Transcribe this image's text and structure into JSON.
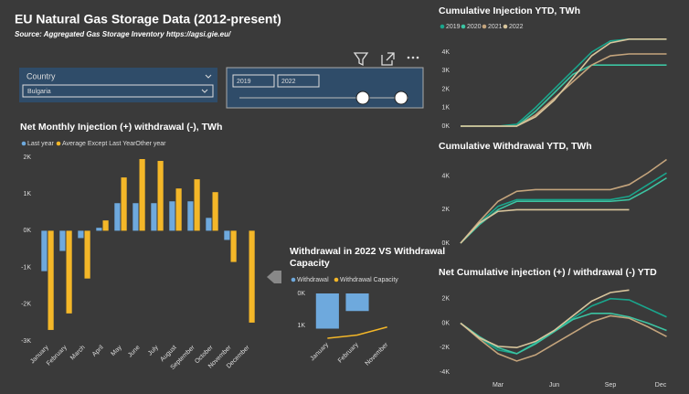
{
  "header": {
    "title": "EU Natural Gas Storage Data (2012-present)",
    "source": "Source: Aggregated Gas Storage Inventory https://agsi.gie.eu/"
  },
  "slicer": {
    "label": "Country",
    "selected": "Bulgaria",
    "year_from": "2019",
    "year_to": "2022"
  },
  "chart_data": [
    {
      "type": "bar",
      "title": "Net Monthly Injection (+) withdrawal (-), TWh",
      "categories": [
        "January",
        "February",
        "March",
        "April",
        "May",
        "June",
        "July",
        "August",
        "September",
        "October",
        "November",
        "December"
      ],
      "series": [
        {
          "name": "Last year",
          "color": "#6ea9dd",
          "values": [
            -1100,
            -550,
            -200,
            80,
            750,
            750,
            750,
            800,
            800,
            350,
            -250,
            0
          ]
        },
        {
          "name": "Average Except Last YearOther year",
          "color": "#f4b728",
          "values": [
            -2700,
            -2250,
            -1300,
            280,
            1450,
            1950,
            1900,
            1150,
            1400,
            1050,
            -850,
            -2500
          ]
        }
      ],
      "ylim": [
        -3000,
        2000
      ],
      "yticks": [
        {
          "value": -3000,
          "label": "-3K"
        },
        {
          "value": -2000,
          "label": "-2K"
        },
        {
          "value": -1000,
          "label": "-1K"
        },
        {
          "value": 0,
          "label": "0K"
        },
        {
          "value": 1000,
          "label": "1K"
        },
        {
          "value": 2000,
          "label": "2K"
        }
      ]
    },
    {
      "type": "combo",
      "title": "Withdrawal in 2022 VS Withdrawal Capacity",
      "categories": [
        "January",
        "February",
        "November"
      ],
      "series": [
        {
          "name": "Withdrawal",
          "color": "#6ea9dd",
          "type": "bar",
          "values": [
            1100,
            550,
            null
          ]
        },
        {
          "name": "Withdrawal Capacity",
          "color": "#f4b728",
          "type": "line",
          "values": [
            1400,
            1300,
            1050
          ]
        }
      ],
      "ylim": [
        0,
        1400
      ],
      "y_inverted": true,
      "yticks": [
        {
          "value": 0,
          "label": "0K"
        },
        {
          "value": 1000,
          "label": "1K"
        }
      ]
    },
    {
      "type": "line",
      "title": "Cumulative Injection YTD, TWh",
      "series": [
        {
          "name": "2019",
          "color": "#1aa58c",
          "values": [
            0,
            0,
            0,
            100,
            1000,
            2000,
            3000,
            4000,
            4600,
            4700,
            4700,
            4700
          ]
        },
        {
          "name": "2020",
          "color": "#3cc4a2",
          "values": [
            0,
            0,
            0,
            0,
            800,
            1800,
            2800,
            3300,
            3300,
            3300,
            3300,
            3300
          ]
        },
        {
          "name": "2021",
          "color": "#c4a47c",
          "values": [
            0,
            0,
            0,
            0,
            600,
            1500,
            2400,
            3300,
            3800,
            3900,
            3900,
            3900
          ]
        },
        {
          "name": "2022",
          "color": "#d8c59c",
          "values": [
            0,
            0,
            0,
            0,
            500,
            1400,
            2600,
            3800,
            4500,
            4700,
            4700,
            4700
          ]
        }
      ],
      "ylim": [
        0,
        4700
      ],
      "yticks": [
        {
          "value": 0,
          "label": "0K"
        },
        {
          "value": 1000,
          "label": "1K"
        },
        {
          "value": 2000,
          "label": "2K"
        },
        {
          "value": 3000,
          "label": "3K"
        },
        {
          "value": 4000,
          "label": "4K"
        }
      ]
    },
    {
      "type": "line",
      "title": "Cumulative Withdrawal YTD, TWh",
      "series": [
        {
          "color": "#1aa58c",
          "values": [
            0,
            1200,
            2200,
            2600,
            2600,
            2600,
            2600,
            2600,
            2600,
            2800,
            3500,
            4200
          ]
        },
        {
          "color": "#3cc4a2",
          "values": [
            0,
            1100,
            2000,
            2500,
            2500,
            2500,
            2500,
            2500,
            2500,
            2600,
            3200,
            3900
          ]
        },
        {
          "color": "#c4a47c",
          "values": [
            0,
            1300,
            2500,
            3100,
            3200,
            3200,
            3200,
            3200,
            3200,
            3500,
            4200,
            5000
          ]
        },
        {
          "color": "#d8c59c",
          "values": [
            0,
            1200,
            1900,
            2000,
            2000,
            2000,
            2000,
            2000,
            2000,
            2000,
            null,
            null
          ]
        }
      ],
      "ylim": [
        0,
        5000
      ],
      "yticks": [
        {
          "value": 0,
          "label": "0K"
        },
        {
          "value": 2000,
          "label": "2K"
        },
        {
          "value": 4000,
          "label": "4K"
        }
      ]
    },
    {
      "type": "line",
      "title": "Net Cumulative injection (+) / withdrawal (-) YTD",
      "categories": [
        null,
        null,
        "Mar",
        null,
        null,
        "Jun",
        null,
        null,
        "Sep",
        null,
        null,
        "Dec"
      ],
      "series": [
        {
          "color": "#1aa58c",
          "values": [
            0,
            -1200,
            -2200,
            -2500,
            -1600,
            -600,
            400,
            1400,
            2000,
            1900,
            1200,
            500
          ]
        },
        {
          "color": "#3cc4a2",
          "values": [
            0,
            -1100,
            -2000,
            -2500,
            -1700,
            -700,
            300,
            800,
            800,
            500,
            0,
            -600
          ]
        },
        {
          "color": "#c4a47c",
          "values": [
            0,
            -1300,
            -2500,
            -3100,
            -2600,
            -1700,
            -800,
            100,
            600,
            400,
            -300,
            -1100
          ]
        },
        {
          "color": "#d8c59c",
          "values": [
            0,
            -1200,
            -1900,
            -2000,
            -1500,
            -600,
            600,
            1800,
            2500,
            2700,
            null,
            null
          ]
        }
      ],
      "ylim": [
        -4000,
        2800
      ],
      "yticks": [
        {
          "value": -4000,
          "label": "-4K"
        },
        {
          "value": -2000,
          "label": "-2K"
        },
        {
          "value": 0,
          "label": "0K"
        },
        {
          "value": 2000,
          "label": "2K"
        }
      ]
    }
  ]
}
